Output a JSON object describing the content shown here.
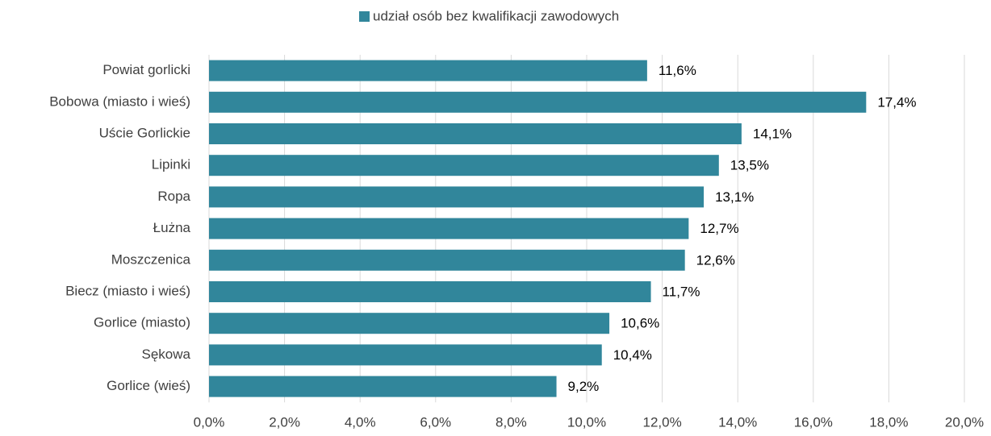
{
  "chart_data": {
    "type": "barh",
    "legend": "udział osób bez kwalifikacji zawodowych",
    "color": "#31869b",
    "categories": [
      "Powiat gorlicki",
      "Bobowa (miasto i wieś)",
      "Uście Gorlickie",
      "Lipinki",
      "Ropa",
      "Łużna",
      "Moszczenica",
      "Biecz (miasto i wieś)",
      "Gorlice (miasto)",
      "Sękowa",
      "Gorlice (wieś)"
    ],
    "values": [
      11.6,
      17.4,
      14.1,
      13.5,
      13.1,
      12.7,
      12.6,
      11.7,
      10.6,
      10.4,
      9.2
    ],
    "value_labels": [
      "11,6%",
      "17,4%",
      "14,1%",
      "13,5%",
      "13,1%",
      "12,7%",
      "12,6%",
      "11,7%",
      "10,6%",
      "10,4%",
      "9,2%"
    ],
    "xlim": [
      0,
      20
    ],
    "xticks": [
      {
        "value": 0,
        "label": "0,0%"
      },
      {
        "value": 2,
        "label": "2,0%"
      },
      {
        "value": 4,
        "label": "4,0%"
      },
      {
        "value": 6,
        "label": "6,0%"
      },
      {
        "value": 8,
        "label": "8,0%"
      },
      {
        "value": 10,
        "label": "10,0%"
      },
      {
        "value": 12,
        "label": "12,0%"
      },
      {
        "value": 14,
        "label": "14,0%"
      },
      {
        "value": 16,
        "label": "16,0%"
      },
      {
        "value": 18,
        "label": "18,0%"
      },
      {
        "value": 20,
        "label": "20,0%"
      }
    ],
    "grid": true
  }
}
